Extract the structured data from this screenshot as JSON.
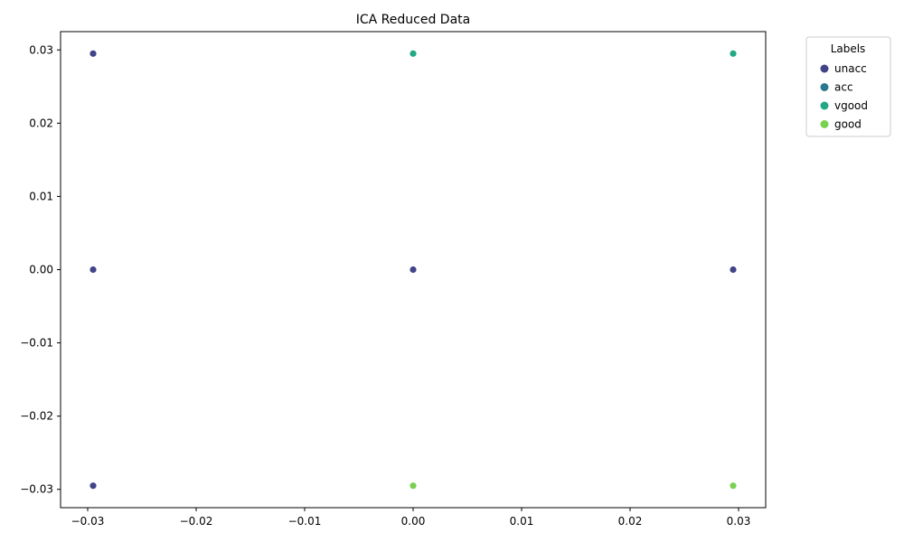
{
  "chart_data": {
    "type": "scatter",
    "title": "ICA Reduced Data",
    "xlabel": "",
    "ylabel": "",
    "xlim": [
      -0.0325,
      0.0325
    ],
    "ylim": [
      -0.0325,
      0.0325
    ],
    "x_ticks": [
      {
        "value": -0.03,
        "label": "−0.03"
      },
      {
        "value": -0.02,
        "label": "−0.02"
      },
      {
        "value": -0.01,
        "label": "−0.01"
      },
      {
        "value": 0.0,
        "label": "0.00"
      },
      {
        "value": 0.01,
        "label": "0.01"
      },
      {
        "value": 0.02,
        "label": "0.02"
      },
      {
        "value": 0.03,
        "label": "0.03"
      }
    ],
    "y_ticks": [
      {
        "value": 0.03,
        "label": "0.03"
      },
      {
        "value": 0.02,
        "label": "0.02"
      },
      {
        "value": 0.01,
        "label": "0.01"
      },
      {
        "value": 0.0,
        "label": "0.00"
      },
      {
        "value": -0.01,
        "label": "−0.01"
      },
      {
        "value": -0.02,
        "label": "−0.02"
      },
      {
        "value": -0.03,
        "label": "−0.03"
      }
    ],
    "grid": false,
    "legend": {
      "title": "Labels",
      "placement": "outside-top-right"
    },
    "series": [
      {
        "name": "unacc",
        "color": "#414487",
        "points": [
          {
            "x": -0.0295,
            "y": 0.0295
          },
          {
            "x": -0.0295,
            "y": 0.0
          },
          {
            "x": 0.0,
            "y": 0.0
          },
          {
            "x": 0.0295,
            "y": 0.0
          },
          {
            "x": -0.0295,
            "y": -0.0295
          }
        ]
      },
      {
        "name": "acc",
        "color": "#2a788e",
        "points": []
      },
      {
        "name": "vgood",
        "color": "#22a884",
        "points": [
          {
            "x": 0.0,
            "y": 0.0295
          },
          {
            "x": 0.0295,
            "y": 0.0295
          }
        ]
      },
      {
        "name": "good",
        "color": "#7ad151",
        "points": [
          {
            "x": 0.0,
            "y": -0.0295
          },
          {
            "x": 0.0295,
            "y": -0.0295
          }
        ]
      }
    ]
  }
}
